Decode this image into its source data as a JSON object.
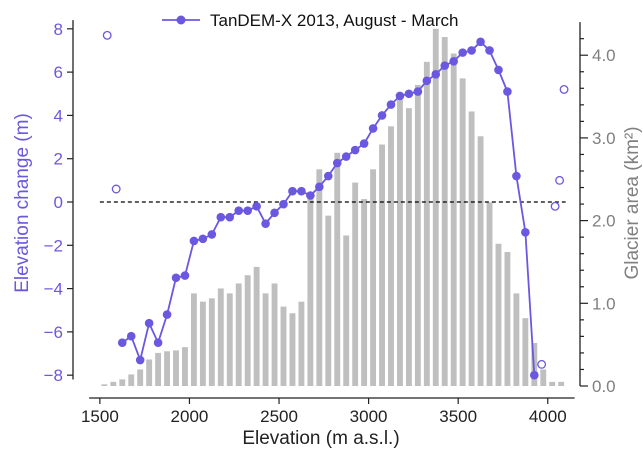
{
  "chart_data": {
    "type": "bar+line",
    "xlabel": "Elevation (m a.s.l.)",
    "ylabel_left": "Elevation change (m)",
    "ylabel_right": "Glacier area (km²)",
    "xlim": [
      1350,
      4180
    ],
    "ylim_left": [
      -8.5,
      8.5
    ],
    "ylim_right": [
      0,
      4.45
    ],
    "x_ticks": [
      1500,
      2000,
      2500,
      3000,
      3500,
      4000
    ],
    "y_left_ticks": [
      -8,
      -6,
      -4,
      -2,
      0,
      2,
      4,
      6,
      8
    ],
    "y_right_ticks": [
      0.0,
      1.0,
      2.0,
      3.0,
      4.0
    ],
    "y_left_tick_labels": [
      "−8",
      "−6",
      "−4",
      "−2",
      "0",
      "2",
      "4",
      "6",
      "8"
    ],
    "y_right_tick_labels": [
      "0.0",
      "1.0",
      "2.0",
      "3.0",
      "4.0"
    ],
    "zero_line": {
      "y": 0,
      "style": "dashed",
      "color": "#000000"
    },
    "legend": {
      "placement": "top-center",
      "entries": [
        {
          "label": "TanDEM-X 2013, August - March"
        }
      ]
    },
    "colors": {
      "series": "#6b58e0",
      "bars": "#bfbfbf",
      "left_axis": "#6b58e0",
      "right_axis": "#808080"
    },
    "area_bars": {
      "width": 40,
      "x": [
        1525,
        1575,
        1625,
        1675,
        1725,
        1775,
        1825,
        1875,
        1925,
        1975,
        2025,
        2075,
        2125,
        2175,
        2225,
        2275,
        2325,
        2375,
        2425,
        2475,
        2525,
        2575,
        2625,
        2675,
        2725,
        2775,
        2825,
        2875,
        2925,
        2975,
        3025,
        3075,
        3125,
        3175,
        3225,
        3275,
        3325,
        3375,
        3425,
        3475,
        3525,
        3575,
        3625,
        3675,
        3725,
        3775,
        3825,
        3875,
        3925,
        3975,
        4025,
        4075
      ],
      "values": [
        0.02,
        0.05,
        0.08,
        0.14,
        0.2,
        0.32,
        0.4,
        0.42,
        0.43,
        0.47,
        1.12,
        1.02,
        1.06,
        1.18,
        1.12,
        1.24,
        1.34,
        1.44,
        1.12,
        1.24,
        0.96,
        0.88,
        1.02,
        2.32,
        2.62,
        2.06,
        2.82,
        1.82,
        2.46,
        2.26,
        2.62,
        2.92,
        3.14,
        3.46,
        3.36,
        3.64,
        3.92,
        4.32,
        4.22,
        4.02,
        3.72,
        3.32,
        3.02,
        2.22,
        1.72,
        1.62,
        1.12,
        0.82,
        0.52,
        0.2,
        0.05,
        0.05
      ]
    },
    "series": [
      {
        "name": "TanDEM-X 2013, August - March",
        "marker": "filled-circle",
        "x": [
          1625,
          1675,
          1725,
          1775,
          1825,
          1875,
          1925,
          1975,
          2025,
          2075,
          2125,
          2175,
          2225,
          2275,
          2325,
          2375,
          2425,
          2475,
          2525,
          2575,
          2625,
          2675,
          2725,
          2775,
          2825,
          2875,
          2925,
          2975,
          3025,
          3075,
          3125,
          3175,
          3225,
          3275,
          3325,
          3375,
          3425,
          3475,
          3525,
          3575,
          3625,
          3675,
          3725,
          3775,
          3825,
          3875,
          3925
        ],
        "values": [
          -6.5,
          -6.2,
          -7.3,
          -5.6,
          -6.5,
          -5.2,
          -3.5,
          -3.4,
          -1.8,
          -1.7,
          -1.5,
          -0.7,
          -0.7,
          -0.4,
          -0.4,
          -0.2,
          -1.0,
          -0.5,
          -0.1,
          0.5,
          0.5,
          0.3,
          0.7,
          1.2,
          1.8,
          2.1,
          2.4,
          2.7,
          3.4,
          4.0,
          4.5,
          4.9,
          5.0,
          5.1,
          5.6,
          5.9,
          6.3,
          6.5,
          6.9,
          7.0,
          7.4,
          7.0,
          6.1,
          5.1,
          1.2,
          -1.4,
          -8.0
        ]
      },
      {
        "name": "",
        "marker": "open-circle",
        "x": [
          1541,
          1591,
          3966,
          4041,
          4066,
          4091
        ],
        "values": [
          7.7,
          0.6,
          -7.5,
          -0.2,
          1.0,
          5.2
        ]
      }
    ]
  }
}
